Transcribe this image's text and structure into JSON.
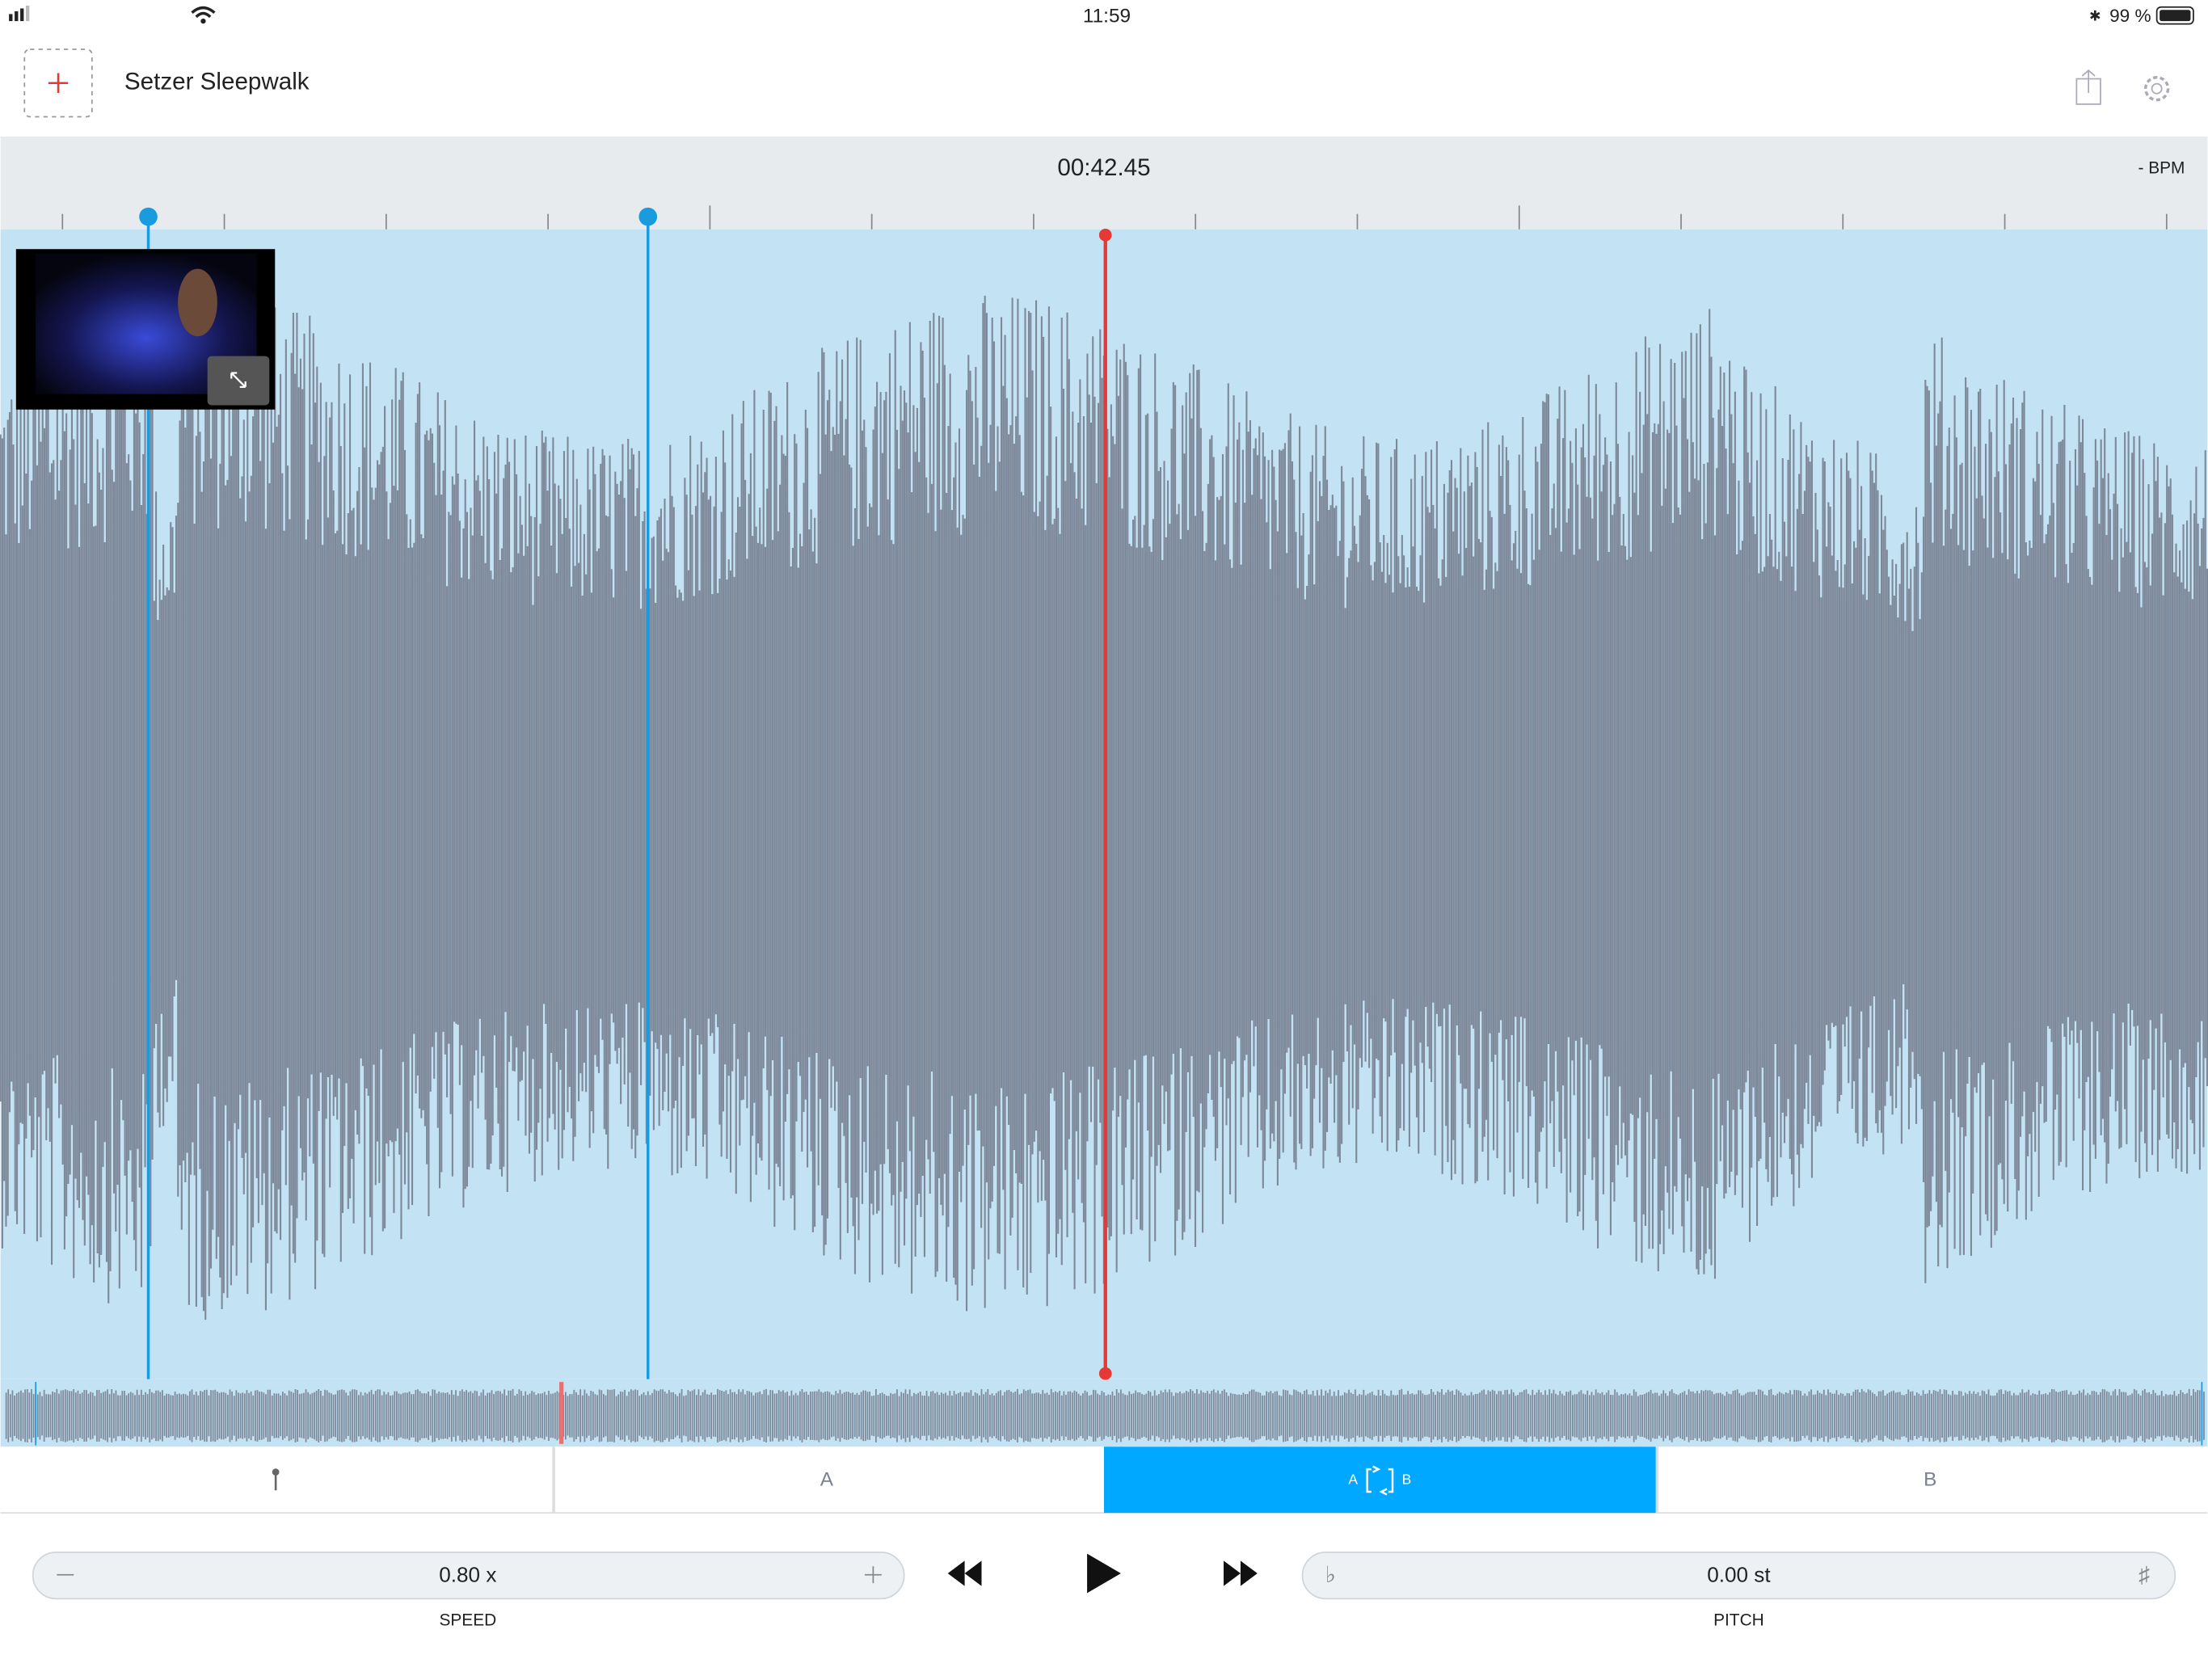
{
  "status_bar": {
    "time": "11:59",
    "battery": "99 %"
  },
  "header": {
    "title": "Setzer Sleepwalk"
  },
  "timeline": {
    "position": "00:42.45",
    "bpm": "- BPM"
  },
  "tabs": {
    "a": "A",
    "loop_a": "A",
    "loop_b": "B",
    "b": "B"
  },
  "controls": {
    "speed": {
      "value": "0.80 x",
      "label": "SPEED"
    },
    "pitch": {
      "value": "0.00 st",
      "label": "PITCH"
    }
  }
}
